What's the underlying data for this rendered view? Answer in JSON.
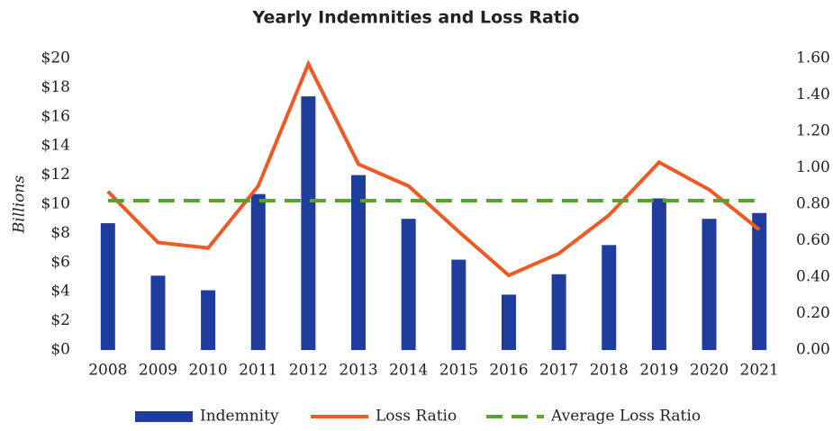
{
  "chart_data": {
    "type": "combo",
    "title": "Yearly Indemnities and Loss Ratio",
    "y_label": "Billions",
    "categories": [
      "2008",
      "2009",
      "2010",
      "2011",
      "2012",
      "2013",
      "2014",
      "2015",
      "2016",
      "2017",
      "2018",
      "2019",
      "2020",
      "2021"
    ],
    "series": [
      {
        "name": "Indemnity",
        "type": "bar",
        "color": "#1f3d9c",
        "values": [
          8.7,
          5.1,
          4.1,
          10.7,
          17.4,
          12.0,
          9.0,
          6.2,
          3.8,
          5.2,
          7.2,
          10.4,
          9.0,
          9.4
        ]
      },
      {
        "name": "Loss Ratio",
        "type": "line",
        "axis": "y2",
        "color": "#f05a22",
        "values": [
          0.87,
          0.59,
          0.56,
          0.9,
          1.57,
          1.02,
          0.9,
          0.65,
          0.41,
          0.53,
          0.74,
          1.03,
          0.88,
          0.66
        ]
      },
      {
        "name": "Average Loss Ratio",
        "type": "line",
        "axis": "y2",
        "dashed": true,
        "color": "#5aa02c",
        "values": [
          0.82,
          0.82,
          0.82,
          0.82,
          0.82,
          0.82,
          0.82,
          0.82,
          0.82,
          0.82,
          0.82,
          0.82,
          0.82,
          0.82
        ]
      }
    ],
    "ylim": [
      0,
      20
    ],
    "yticks": [
      {
        "value": 0,
        "label": "$0"
      },
      {
        "value": 2,
        "label": "$2"
      },
      {
        "value": 4,
        "label": "$4"
      },
      {
        "value": 6,
        "label": "$6"
      },
      {
        "value": 8,
        "label": "$8"
      },
      {
        "value": 10,
        "label": "$10"
      },
      {
        "value": 12,
        "label": "$12"
      },
      {
        "value": 14,
        "label": "$14"
      },
      {
        "value": 16,
        "label": "$16"
      },
      {
        "value": 18,
        "label": "$18"
      },
      {
        "value": 20,
        "label": "$20"
      }
    ],
    "y2lim": [
      0,
      1.6
    ],
    "y2ticks": [
      {
        "value": 0,
        "label": "0.00"
      },
      {
        "value": 0.2,
        "label": "0.20"
      },
      {
        "value": 0.4,
        "label": "0.40"
      },
      {
        "value": 0.6,
        "label": "0.60"
      },
      {
        "value": 0.8,
        "label": "0.80"
      },
      {
        "value": 1.0,
        "label": "1.00"
      },
      {
        "value": 1.2,
        "label": "1.20"
      },
      {
        "value": 1.4,
        "label": "1.40"
      },
      {
        "value": 1.6,
        "label": "1.60"
      }
    ],
    "legend": "bottom"
  }
}
